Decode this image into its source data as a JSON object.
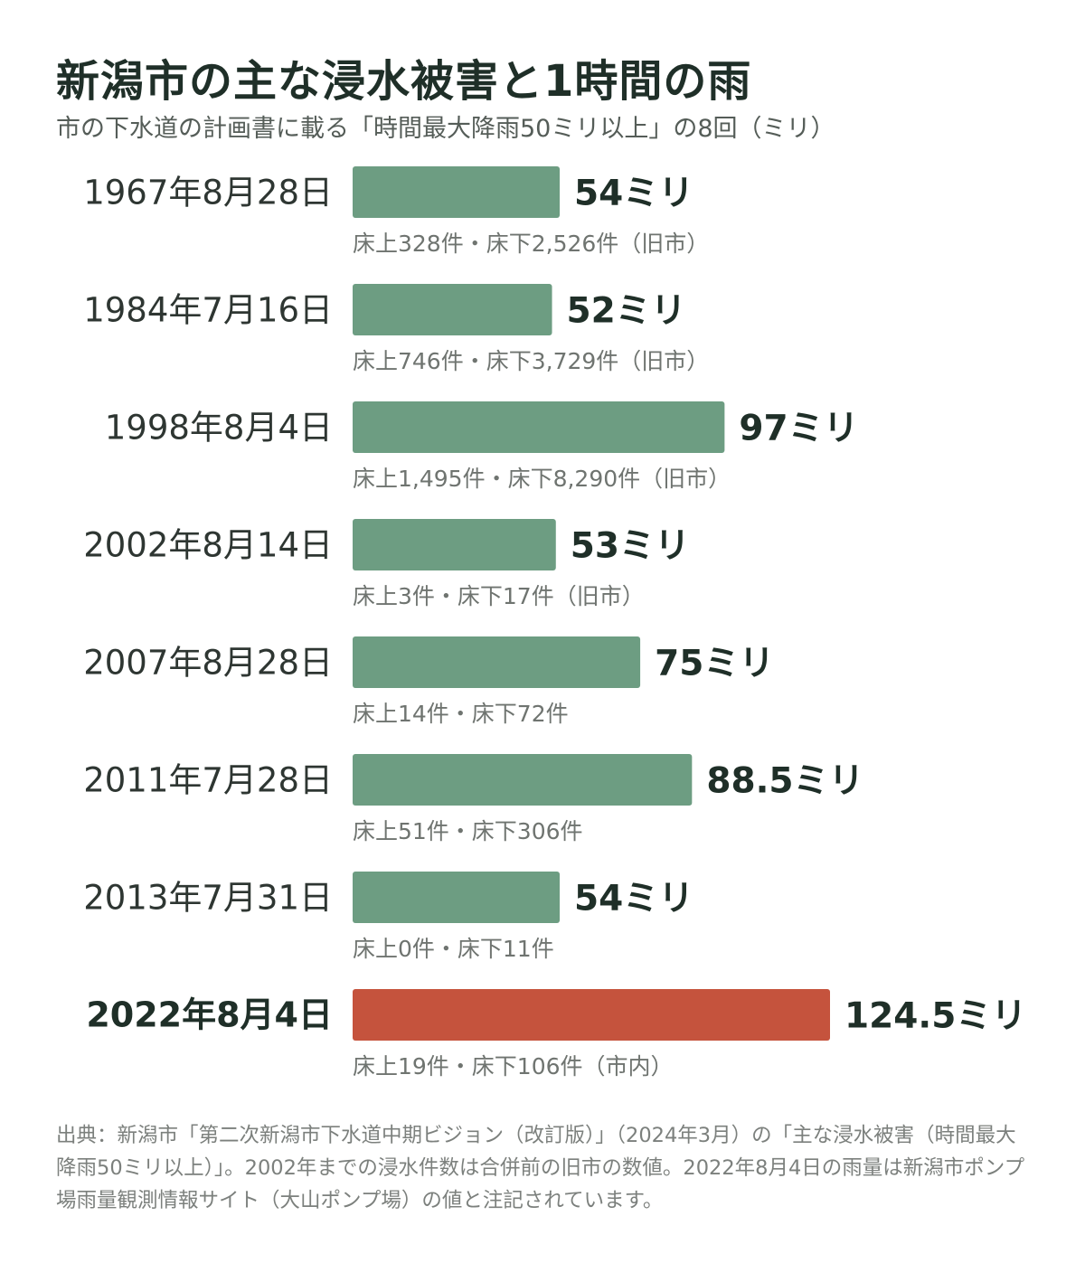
{
  "title": "新潟市の主な浸水被害と1時間の雨",
  "subtitle": "市の下水道の計画書に載る「時間最大降雨50ミリ以上」の8回（ミリ）",
  "colors": {
    "normal_bar": "#6d9d82",
    "highlight_bar": "#c5533d",
    "value_text": "#1f2f28",
    "date_text": "#2e3632",
    "damage_text": "#6f7470"
  },
  "chart_data": {
    "type": "bar",
    "orientation": "horizontal",
    "title": "新潟市の主な浸水被害と1時間の雨",
    "unit_suffix": "ミリ",
    "categories": [
      "1967年8月28日",
      "1984年7月16日",
      "1998年8月4日",
      "2002年8月14日",
      "2007年8月28日",
      "2011年7月28日",
      "2013年7月31日",
      "2022年8月4日"
    ],
    "values": [
      54,
      52,
      97,
      53,
      75,
      88.5,
      54,
      124.5
    ],
    "value_labels": [
      "54ミリ",
      "52ミリ",
      "97ミリ",
      "53ミリ",
      "75ミリ",
      "88.5ミリ",
      "54ミリ",
      "124.5ミリ"
    ],
    "annotations": [
      "床上328件・床下2,526件（旧市）",
      "床上746件・床下3,729件（旧市）",
      "床上1,495件・床下8,290件（旧市）",
      "床上3件・床下17件（旧市）",
      "床上14件・床下72件",
      "床上51件・床下306件",
      "床上0件・床下11件",
      "床上19件・床下106件（市内）"
    ],
    "highlight_index": 7,
    "xlim": [
      0,
      124.5
    ],
    "grid": false,
    "legend": "none"
  },
  "footnote": "出典：新潟市「第二次新潟市下水道中期ビジョン（改訂版）」（2024年3月）の「主な浸水被害（時間最大降雨50ミリ以上）」。2002年までの浸水件数は合併前の旧市の数値。2022年8月4日の雨量は新潟市ポンプ場雨量観測情報サイト（大山ポンプ場）の値と注記されています。"
}
